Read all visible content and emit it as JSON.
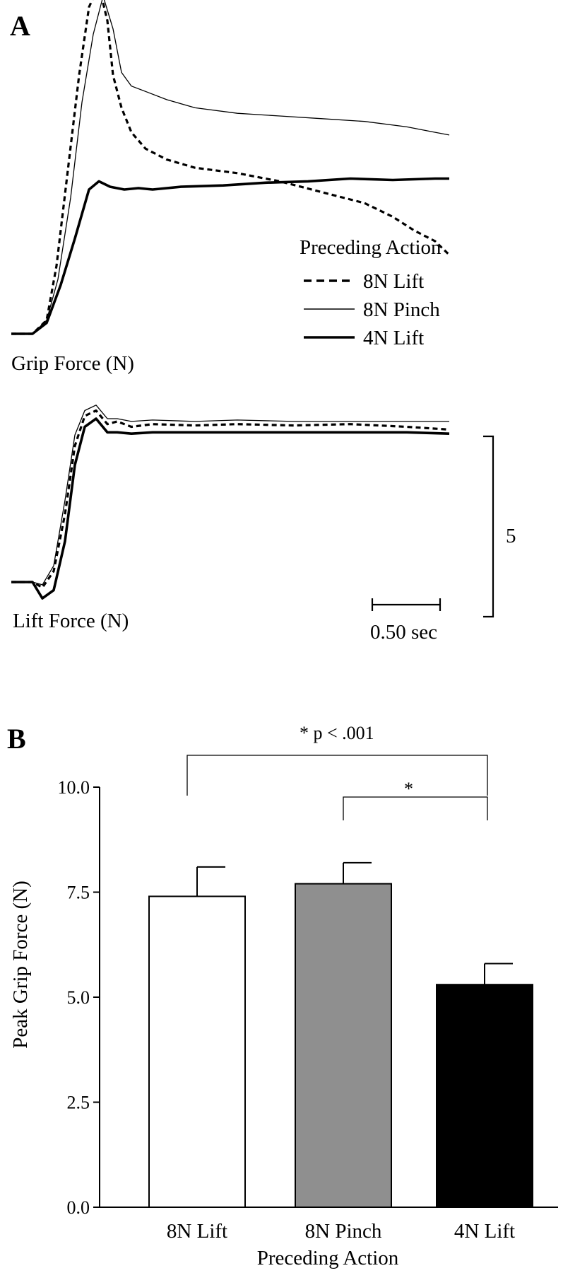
{
  "chart_data": [
    {
      "panel": "A",
      "type": "line",
      "legend": {
        "title": "Preceding Action",
        "placement": "right",
        "entries": [
          {
            "label": "8N Lift",
            "style": "dashed"
          },
          {
            "label": "8N Pinch",
            "style": "thin"
          },
          {
            "label": "4N Lift",
            "style": "thick"
          }
        ]
      },
      "traces": [
        {
          "label": "Grip Force (N)",
          "series": [
            {
              "legend_ref": 0,
              "style": "dashed",
              "x": [
                0,
                0.15,
                0.25,
                0.32,
                0.4,
                0.48,
                0.55,
                0.62,
                0.68,
                0.72,
                0.78,
                0.85,
                0.95,
                1.1,
                1.3,
                1.6,
                1.9,
                2.2,
                2.5,
                2.7,
                2.85,
                3.0,
                3.1
              ],
              "y": [
                0,
                0,
                0.5,
                2.5,
                6.0,
                9.5,
                12.0,
                12.8,
                11.5,
                9.5,
                8.3,
                7.4,
                6.8,
                6.4,
                6.1,
                5.9,
                5.6,
                5.2,
                4.8,
                4.3,
                3.8,
                3.4,
                2.9
              ]
            },
            {
              "legend_ref": 1,
              "style": "thin",
              "x": [
                0,
                0.15,
                0.25,
                0.33,
                0.42,
                0.5,
                0.58,
                0.65,
                0.72,
                0.78,
                0.85,
                0.95,
                1.1,
                1.3,
                1.6,
                1.9,
                2.2,
                2.5,
                2.8,
                3.0,
                3.1
              ],
              "y": [
                0,
                0,
                0.5,
                2.0,
                5.0,
                8.5,
                11.0,
                12.4,
                11.2,
                9.6,
                9.1,
                8.9,
                8.6,
                8.3,
                8.1,
                8.0,
                7.9,
                7.8,
                7.6,
                7.4,
                7.3
              ]
            },
            {
              "legend_ref": 2,
              "style": "thick",
              "x": [
                0,
                0.15,
                0.25,
                0.35,
                0.45,
                0.55,
                0.62,
                0.7,
                0.8,
                0.9,
                1.0,
                1.2,
                1.5,
                1.8,
                2.1,
                2.4,
                2.7,
                3.0,
                3.1
              ],
              "y": [
                0,
                0,
                0.4,
                1.8,
                3.5,
                5.3,
                5.6,
                5.4,
                5.3,
                5.35,
                5.3,
                5.4,
                5.45,
                5.55,
                5.6,
                5.7,
                5.65,
                5.7,
                5.7
              ]
            }
          ]
        },
        {
          "label": "Lift Force (N)",
          "series": [
            {
              "legend_ref": 0,
              "style": "dashed",
              "x": [
                0,
                0.15,
                0.22,
                0.3,
                0.38,
                0.45,
                0.52,
                0.6,
                0.68,
                0.75,
                0.85,
                1.0,
                1.3,
                1.6,
                2.0,
                2.4,
                2.8,
                3.1
              ],
              "y": [
                0,
                0,
                -0.2,
                0.4,
                2.5,
                5.0,
                6.1,
                6.3,
                5.8,
                5.9,
                5.7,
                5.8,
                5.75,
                5.8,
                5.75,
                5.8,
                5.7,
                5.6
              ]
            },
            {
              "legend_ref": 1,
              "style": "thin",
              "x": [
                0,
                0.15,
                0.22,
                0.3,
                0.38,
                0.45,
                0.52,
                0.6,
                0.68,
                0.75,
                0.85,
                1.0,
                1.3,
                1.6,
                2.0,
                2.4,
                2.8,
                3.1
              ],
              "y": [
                0,
                0,
                -0.1,
                0.6,
                3.0,
                5.4,
                6.3,
                6.5,
                6.0,
                6.0,
                5.9,
                5.95,
                5.9,
                5.95,
                5.9,
                5.9,
                5.9,
                5.9
              ]
            },
            {
              "legend_ref": 2,
              "style": "thick",
              "x": [
                0,
                0.15,
                0.22,
                0.3,
                0.38,
                0.45,
                0.52,
                0.6,
                0.68,
                0.75,
                0.85,
                1.0,
                1.3,
                1.6,
                2.0,
                2.4,
                2.8,
                3.1
              ],
              "y": [
                0,
                0,
                -0.6,
                -0.3,
                1.5,
                4.3,
                5.7,
                6.0,
                5.5,
                5.5,
                5.45,
                5.5,
                5.5,
                5.5,
                5.5,
                5.5,
                5.5,
                5.45
              ]
            }
          ]
        }
      ],
      "scale_bars": {
        "force": "5",
        "time": "0.50 sec"
      }
    },
    {
      "panel": "B",
      "type": "bar",
      "categories": [
        "8N Lift",
        "8N Pinch",
        "4N Lift"
      ],
      "values": [
        7.4,
        7.7,
        5.3
      ],
      "errors": [
        0.7,
        0.5,
        0.5
      ],
      "bar_colors": [
        "#ffffff",
        "#8f8f8f",
        "#000000"
      ],
      "xlabel": "Preceding Action",
      "ylabel": "Peak Grip Force (N)",
      "ylim": [
        0,
        10
      ],
      "yticks": [
        "0.0",
        "2.5",
        "5.0",
        "7.5",
        "10.0"
      ],
      "significance": [
        {
          "from": 0,
          "to": 2,
          "label": "*  p < .001"
        },
        {
          "from": 1,
          "to": 2,
          "label": "*"
        }
      ]
    }
  ]
}
